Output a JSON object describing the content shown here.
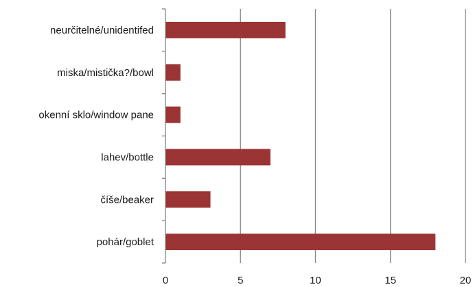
{
  "chart_data": {
    "type": "bar",
    "orientation": "horizontal",
    "categories": [
      "pohár/goblet",
      "číše/beaker",
      "lahev/bottle",
      "okenní sklo/window pane",
      "miska/mistička?/bowl",
      "neurčitelné/unidentifed"
    ],
    "values": [
      18,
      3,
      7,
      1,
      1,
      8
    ],
    "xlim": [
      0,
      20
    ],
    "xticks": [
      0,
      5,
      10,
      15,
      20
    ],
    "grid": true,
    "legend": "none",
    "title": "",
    "xlabel": "",
    "ylabel": "",
    "bar_color": "#9b3434"
  }
}
